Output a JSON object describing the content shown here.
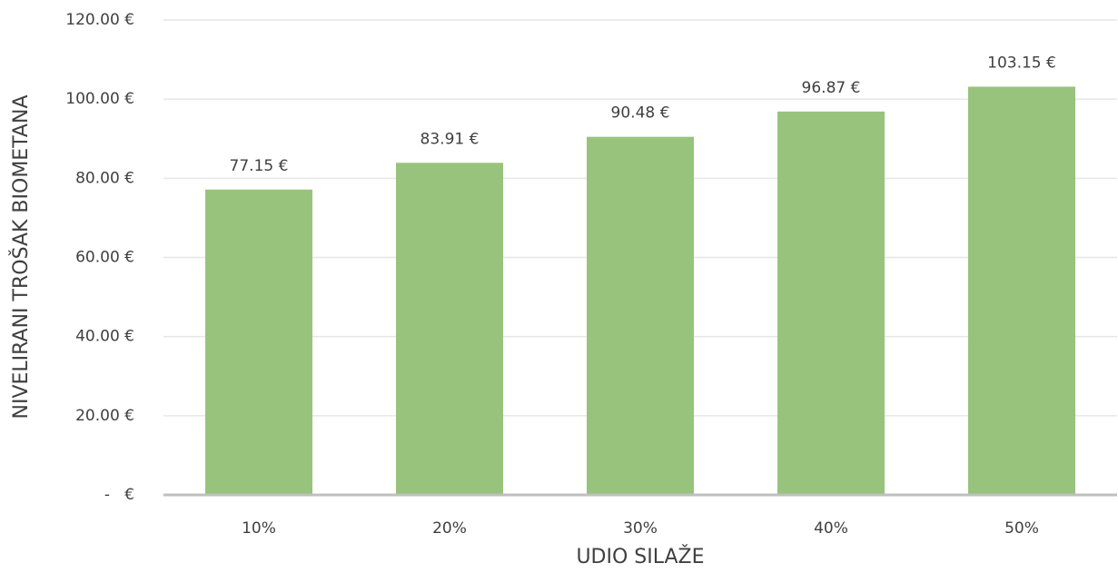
{
  "chart_data": {
    "type": "bar",
    "x_label": "UDIO SILAŽE",
    "y_label": "NIVELIRANI TROŠAK BIOMETANA",
    "categories": [
      "10%",
      "20%",
      "30%",
      "40%",
      "50%"
    ],
    "values": [
      77.15,
      83.91,
      90.48,
      96.87,
      103.15
    ],
    "value_labels": [
      "77.15 €",
      "83.91 €",
      "90.48 €",
      "96.87 €",
      "103.15 €"
    ],
    "color": "#98c37d",
    "ylim": [
      0,
      120
    ],
    "yticks": [
      {
        "value": 0,
        "label": "-   €"
      },
      {
        "value": 20,
        "label": "20.00 €"
      },
      {
        "value": 40,
        "label": "40.00 €"
      },
      {
        "value": 60,
        "label": "60.00 €"
      },
      {
        "value": 80,
        "label": "80.00 €"
      },
      {
        "value": 100,
        "label": "100.00 €"
      },
      {
        "value": 120,
        "label": "120.00 €"
      }
    ],
    "grid": true
  }
}
